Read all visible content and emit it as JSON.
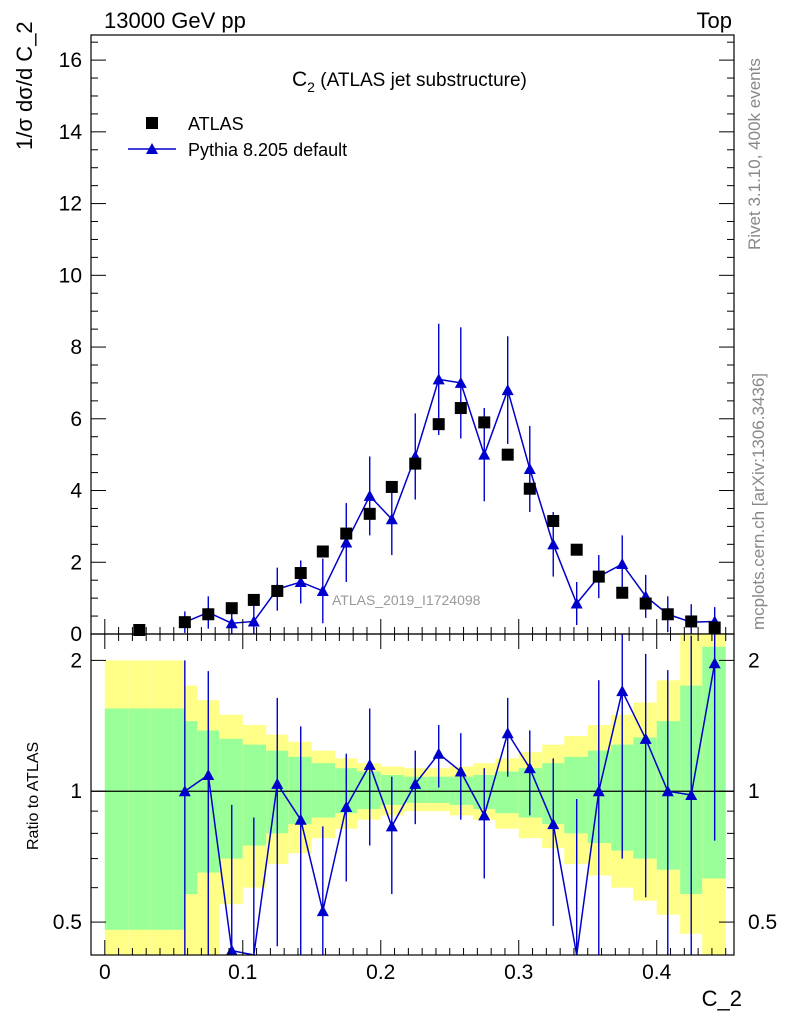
{
  "header": {
    "left": "13000 GeV pp",
    "right": "Top"
  },
  "side": {
    "rivet": "Rivet 3.1.10,  400k events",
    "mcplots": "mcplots.cern.ch [arXiv:1306.3436]"
  },
  "chart_data": {
    "type": "scatter",
    "title_main": "C",
    "title_sub": "2",
    "title_rest": " (ATLAS jet substructure)",
    "analysis_id": "ATLAS_2019_I1724098",
    "xlabel": "C_2",
    "ylabel_top": "1/σ dσ/d C_2",
    "ylabel_ratio": "Ratio to ATLAS",
    "xlim": [
      -0.01,
      0.456
    ],
    "ylim_main": [
      0,
      16.7
    ],
    "ylim_ratio": [
      0.42,
      2.3
    ],
    "x_ticks": [
      "0",
      "0.1",
      "0.2",
      "0.3",
      "0.4"
    ],
    "x_tick_values": [
      0,
      0.1,
      0.2,
      0.3,
      0.4
    ],
    "y_ticks_main": [
      "0",
      "2",
      "4",
      "6",
      "8",
      "10",
      "12",
      "14",
      "16"
    ],
    "y_tick_values_main": [
      0,
      2,
      4,
      6,
      8,
      10,
      12,
      14,
      16
    ],
    "y_ticks_ratio": [
      "0.5",
      "1",
      "2"
    ],
    "y_tick_values_ratio": [
      0.5,
      1,
      2
    ],
    "legend": {
      "data_label": "ATLAS",
      "mc_label": "Pythia 8.205 default",
      "position": "top-left"
    },
    "colors": {
      "data": "#000000",
      "mc": "#0000cc",
      "band_inner": "#99ff99",
      "band_outer": "#ffff88"
    },
    "atlas": {
      "x": [
        0.025,
        0.058,
        0.075,
        0.092,
        0.108,
        0.125,
        0.142,
        0.158,
        0.175,
        0.192,
        0.208,
        0.225,
        0.242,
        0.258,
        0.275,
        0.292,
        0.308,
        0.325,
        0.342,
        0.358,
        0.375,
        0.392,
        0.408,
        0.425,
        0.442
      ],
      "y": [
        0.0,
        0.33,
        0.55,
        0.72,
        0.95,
        1.2,
        1.7,
        2.3,
        2.8,
        3.35,
        4.1,
        4.75,
        5.85,
        6.3,
        5.9,
        5.0,
        4.05,
        3.15,
        2.35,
        1.6,
        1.15,
        0.85,
        0.55,
        0.35,
        0.18
      ]
    },
    "pythia": {
      "x": [
        0.058,
        0.075,
        0.092,
        0.108,
        0.125,
        0.142,
        0.158,
        0.175,
        0.192,
        0.208,
        0.225,
        0.242,
        0.258,
        0.275,
        0.292,
        0.308,
        0.325,
        0.342,
        0.358,
        0.375,
        0.392,
        0.408,
        0.425,
        0.442
      ],
      "y": [
        0.33,
        0.6,
        0.3,
        0.35,
        1.25,
        1.45,
        1.2,
        2.55,
        3.85,
        3.2,
        4.95,
        7.1,
        7.0,
        5.0,
        6.8,
        4.6,
        2.5,
        0.85,
        1.6,
        1.95,
        1.05,
        0.55,
        0.33,
        0.35
      ],
      "err": [
        0.3,
        0.45,
        0.35,
        0.5,
        0.6,
        0.6,
        0.9,
        1.1,
        1.1,
        1.0,
        1.2,
        1.55,
        1.55,
        1.3,
        1.5,
        1.2,
        0.9,
        0.6,
        0.6,
        0.8,
        0.6,
        0.5,
        0.5,
        0.4
      ],
      "ratio": [
        1.0,
        1.09,
        0.43,
        0.37,
        1.04,
        0.86,
        0.53,
        0.92,
        1.15,
        0.83,
        1.04,
        1.22,
        1.11,
        0.88,
        1.36,
        1.13,
        0.84,
        0.36,
        1.0,
        1.7,
        1.32,
        1.0,
        0.98,
        1.97
      ],
      "ratio_err": [
        1.0,
        0.8,
        0.5,
        0.5,
        0.6,
        0.55,
        0.3,
        0.3,
        0.4,
        0.25,
        0.2,
        0.2,
        0.25,
        0.25,
        0.28,
        0.25,
        0.35,
        0.6,
        0.8,
        1.0,
        0.75,
        0.9,
        1.3,
        1.2
      ]
    },
    "bands": {
      "edges": [
        0.0,
        0.017,
        0.033,
        0.05,
        0.058,
        0.067,
        0.083,
        0.1,
        0.117,
        0.133,
        0.15,
        0.167,
        0.183,
        0.2,
        0.217,
        0.233,
        0.25,
        0.267,
        0.283,
        0.3,
        0.317,
        0.333,
        0.35,
        0.367,
        0.383,
        0.4,
        0.417,
        0.433,
        0.45
      ],
      "inner_lo": [
        0.48,
        0.48,
        0.48,
        0.48,
        0.58,
        0.65,
        0.7,
        0.75,
        0.8,
        0.84,
        0.87,
        0.89,
        0.91,
        0.93,
        0.94,
        0.94,
        0.93,
        0.91,
        0.89,
        0.87,
        0.84,
        0.8,
        0.76,
        0.73,
        0.7,
        0.66,
        0.58,
        0.63
      ],
      "inner_hi": [
        1.55,
        1.55,
        1.55,
        1.55,
        1.45,
        1.38,
        1.32,
        1.28,
        1.24,
        1.2,
        1.16,
        1.13,
        1.11,
        1.09,
        1.08,
        1.08,
        1.08,
        1.09,
        1.11,
        1.13,
        1.16,
        1.2,
        1.24,
        1.28,
        1.33,
        1.45,
        1.75,
        2.15
      ],
      "outer_lo": [
        0.42,
        0.42,
        0.42,
        0.42,
        0.42,
        0.42,
        0.55,
        0.6,
        0.68,
        0.72,
        0.78,
        0.82,
        0.86,
        0.88,
        0.9,
        0.9,
        0.88,
        0.86,
        0.82,
        0.78,
        0.74,
        0.68,
        0.64,
        0.6,
        0.56,
        0.52,
        0.47,
        0.42
      ],
      "outer_hi": [
        2.0,
        2.0,
        2.0,
        2.0,
        1.75,
        1.62,
        1.5,
        1.42,
        1.35,
        1.3,
        1.24,
        1.19,
        1.16,
        1.14,
        1.13,
        1.13,
        1.14,
        1.16,
        1.19,
        1.23,
        1.28,
        1.34,
        1.42,
        1.5,
        1.6,
        1.8,
        2.3,
        2.3
      ]
    }
  }
}
